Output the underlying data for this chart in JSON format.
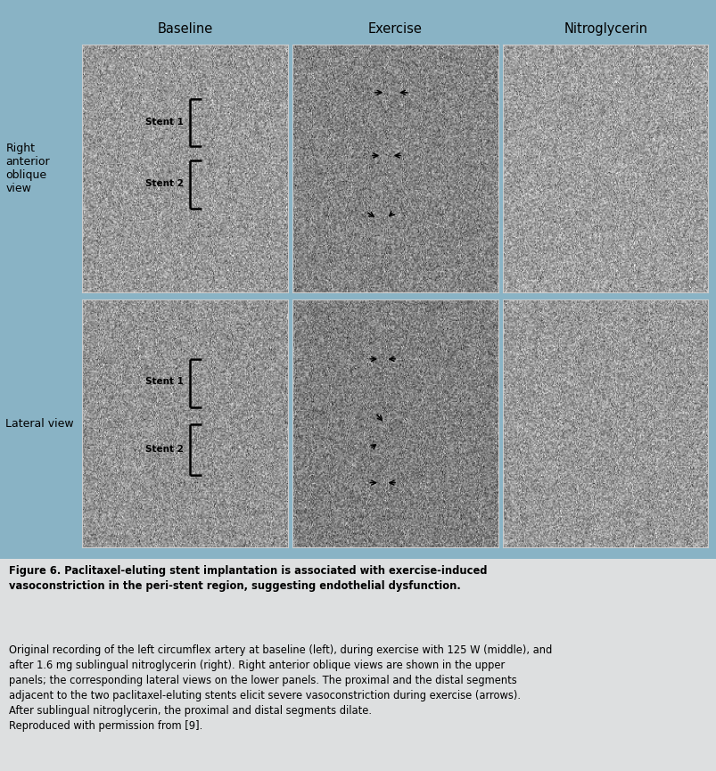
{
  "background_color": "#89B3C5",
  "caption_bg": "#DDDFE0",
  "col_headers": [
    "Baseline",
    "Exercise",
    "Nitroglycerin"
  ],
  "row_labels": [
    "Right\nanterior\noblique\nview",
    "Lateral view"
  ],
  "caption_bold": "Figure 6. Paclitaxel-eluting stent implantation is associated with exercise-induced\nvasoconstriction in the peri-stent region, suggesting endothelial dysfunction.",
  "caption_normal_lines": [
    "Original recording of the left circumflex artery at baseline (left), during exercise with 125 W (middle), and",
    "after 1.6 mg sublingual nitroglycerin (right). Right anterior oblique views are shown in the upper",
    "panels; the corresponding lateral views on the lower panels. The proximal and the distal segments",
    "adjacent to the two paclitaxel-eluting stents elicit severe vasoconstriction during exercise (arrows).",
    "After sublingual nitroglycerin, the proximal and distal segments dilate.",
    "Reproduced with permission from [9]."
  ],
  "fig_width": 8.04,
  "fig_height": 8.65,
  "header_fontsize": 10.5,
  "row_label_fontsize": 9,
  "caption_fontsize": 8.3,
  "stent_fontsize": 7.5
}
